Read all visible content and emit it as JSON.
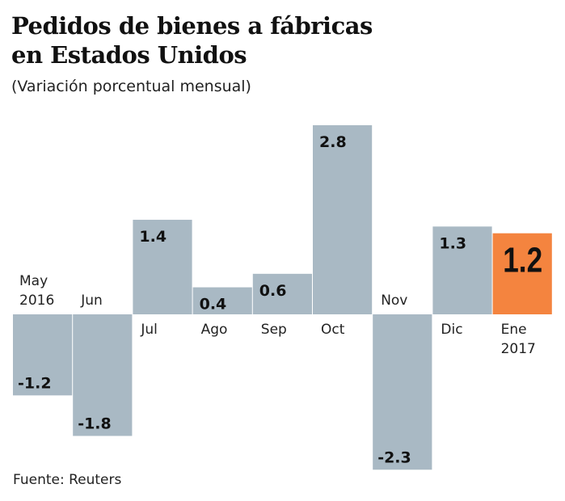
{
  "title_lines": [
    "Pedidos de bienes a fábricas",
    "en Estados Unidos"
  ],
  "subtitle": "(Variación porcentual mensual)",
  "source": "Fuente: Reuters",
  "chart_data": {
    "type": "bar",
    "categories": [
      [
        "May",
        "2016"
      ],
      [
        "Jun"
      ],
      [
        "Jul"
      ],
      [
        "Ago"
      ],
      [
        "Sep"
      ],
      [
        "Oct"
      ],
      [
        "Nov"
      ],
      [
        "Dic"
      ],
      [
        "Ene",
        "2017"
      ]
    ],
    "values": [
      -1.2,
      -1.8,
      1.4,
      0.4,
      0.6,
      2.8,
      -2.3,
      1.3,
      1.2
    ],
    "value_labels": [
      "-1.2",
      "-1.8",
      "1.4",
      "0.4",
      "0.6",
      "2.8",
      "-2.3",
      "1.3",
      "1.2"
    ],
    "highlight_index": 8,
    "colors": {
      "bar": "#a9b9c4",
      "highlight": "#f4843f",
      "text": "#111111"
    },
    "ylim": [
      -2.3,
      2.8
    ],
    "grid": false,
    "title": "Pedidos de bienes a fábricas en Estados Unidos",
    "subtitle": "(Variación porcentual mensual)"
  }
}
